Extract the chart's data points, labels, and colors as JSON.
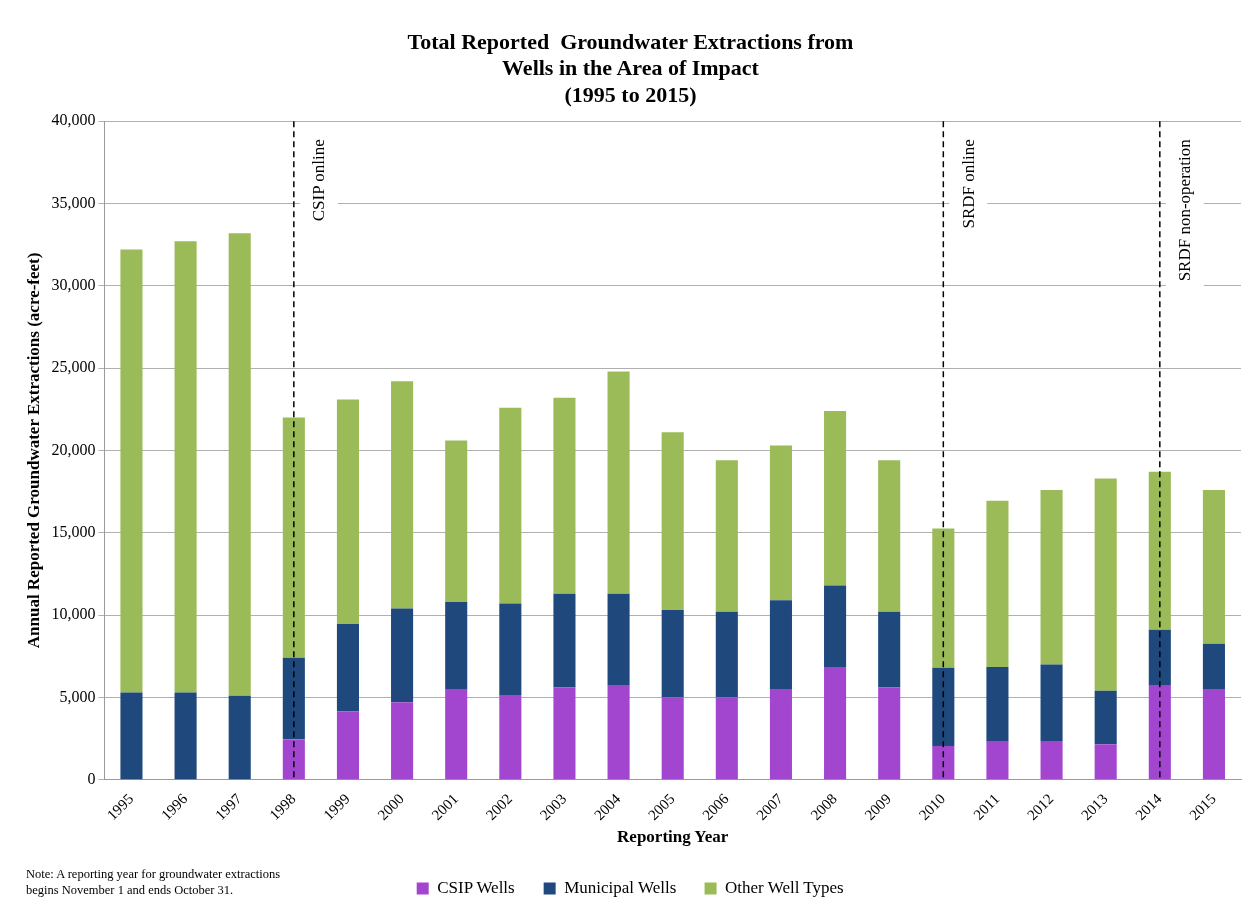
{
  "chart_data": {
    "type": "bar",
    "stacked": true,
    "title": "Total Reported  Groundwater Extractions from\nWells in the Area of Impact\n(1995 to 2015)",
    "xlabel": "Reporting Year",
    "ylabel": "Annual Reported Groundwater Extractions (acre-feet)",
    "categories": [
      "1995",
      "1996",
      "1997",
      "1998",
      "1999",
      "2000",
      "2001",
      "2002",
      "2003",
      "2004",
      "2005",
      "2006",
      "2007",
      "2008",
      "2009",
      "2010",
      "2011",
      "2012",
      "2013",
      "2014",
      "2015"
    ],
    "series": [
      {
        "name": "CSIP Wells",
        "color": "#a346cf",
        "values": [
          0,
          0,
          0,
          2450,
          4150,
          4700,
          5500,
          5150,
          5600,
          5700,
          5000,
          5000,
          5500,
          6850,
          5600,
          2050,
          2300,
          2300,
          2150,
          5700,
          5500
        ]
      },
      {
        "name": "Municipal Wells",
        "color": "#1f497d",
        "values": [
          5300,
          5300,
          5100,
          4950,
          5300,
          5700,
          5300,
          5550,
          5700,
          5600,
          5300,
          5200,
          5400,
          4950,
          4600,
          4750,
          4550,
          4700,
          3250,
          3400,
          2750
        ]
      },
      {
        "name": "Other Well Types",
        "color": "#9bbb59",
        "values": [
          26900,
          27400,
          28100,
          14600,
          13650,
          13800,
          9800,
          11900,
          11900,
          13500,
          10800,
          9200,
          9400,
          10600,
          9200,
          8450,
          10100,
          10600,
          12900,
          9600,
          9350
        ]
      }
    ],
    "ylim": [
      0,
      40000
    ],
    "yticks": [
      {
        "value": 0,
        "label": "0"
      },
      {
        "value": 5000,
        "label": "5,000"
      },
      {
        "value": 10000,
        "label": "10,000"
      },
      {
        "value": 15000,
        "label": "15,000"
      },
      {
        "value": 20000,
        "label": "20,000"
      },
      {
        "value": 25000,
        "label": "25,000"
      },
      {
        "value": 30000,
        "label": "30,000"
      },
      {
        "value": 35000,
        "label": "35,000"
      },
      {
        "value": 40000,
        "label": "40,000"
      }
    ],
    "grid": "y",
    "legend": "bottom",
    "ref_lines": [
      {
        "axis": "x",
        "value": "1998",
        "label": "CSIP online",
        "color": "#000000",
        "line_style": "dashed"
      },
      {
        "axis": "x",
        "value": "2010",
        "label": "SRDF online",
        "color": "#000000",
        "line_style": "dashed"
      },
      {
        "axis": "x",
        "value": "2014",
        "label": "SRDF non-operation",
        "color": "#000000",
        "line_style": "dashed"
      }
    ],
    "annotations": [
      "Note: A reporting year for groundwater extractions\nbegins November 1 and ends October 31."
    ]
  }
}
